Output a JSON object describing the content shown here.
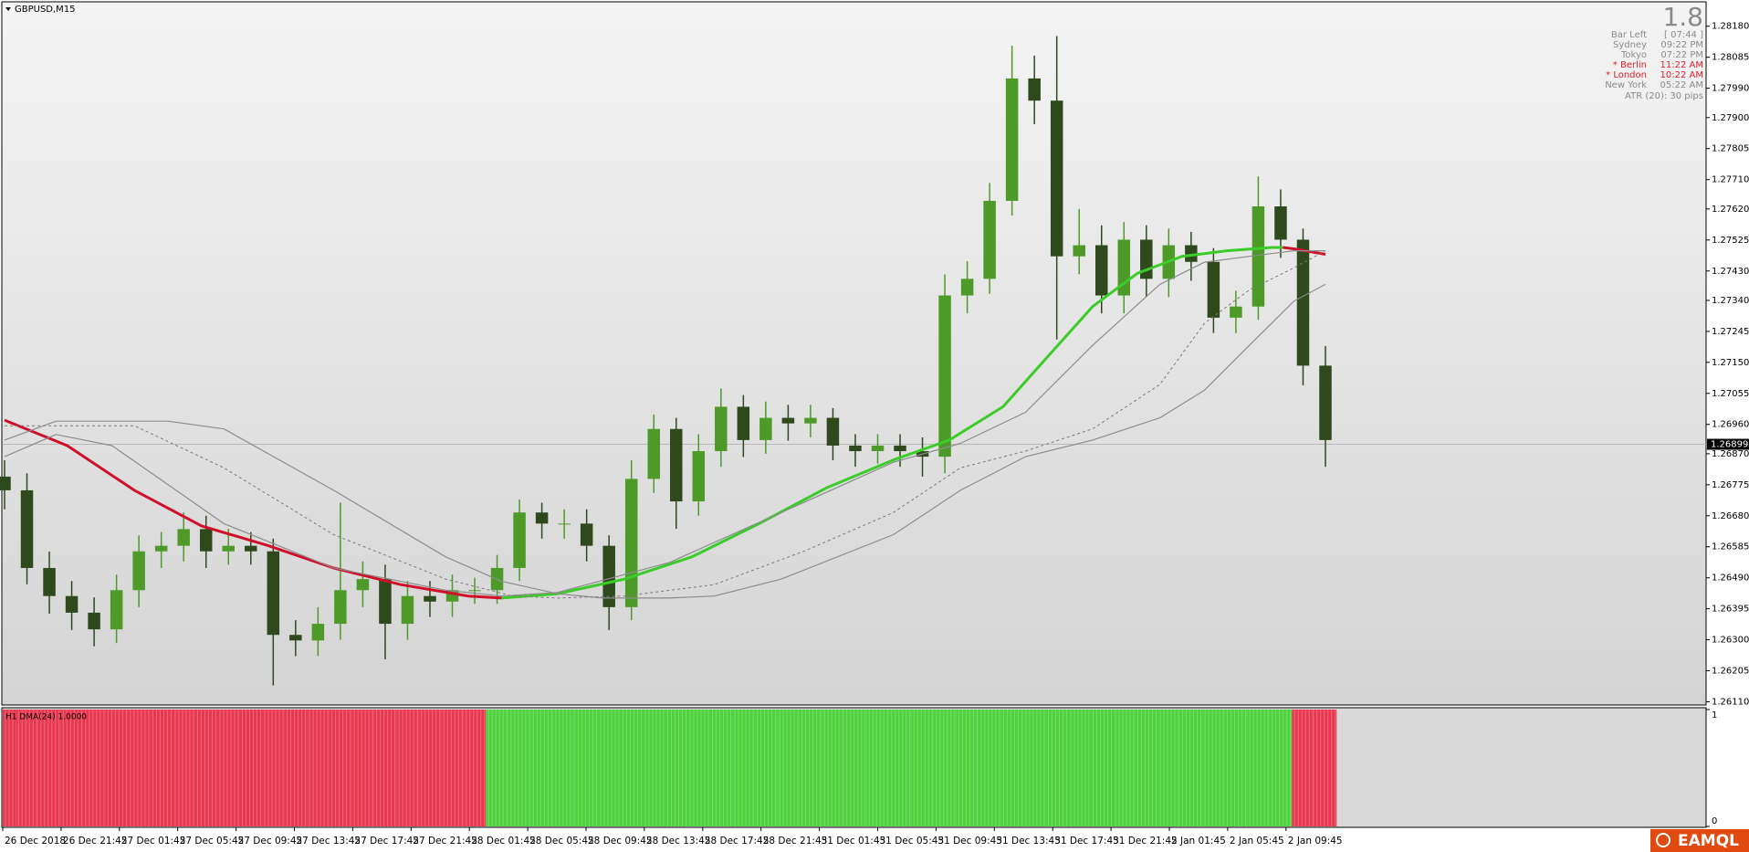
{
  "title": "GBPUSD,M15",
  "logo": "EAMQL",
  "info": {
    "big": "1.8",
    "rows": [
      {
        "name": "Bar Left",
        "value": "[ 07:44 ]",
        "color": "#8a8a8a"
      },
      {
        "name": "Sydney",
        "value": "09:22 PM",
        "color": "#8a8a8a"
      },
      {
        "name": "Tokyo",
        "value": "07:22 PM",
        "color": "#8a8a8a"
      },
      {
        "name": "* Berlin",
        "value": "11:22 AM",
        "color": "#e0202a"
      },
      {
        "name": "* London",
        "value": "10:22 AM",
        "color": "#e0202a"
      },
      {
        "name": "New York",
        "value": "05:22 AM",
        "color": "#8a8a8a"
      }
    ],
    "atr": "ATR (20): 30 pips"
  },
  "chart_data": {
    "type": "candlestick",
    "open": [
      1.268,
      1.26758,
      1.2652,
      1.26434,
      1.26383,
      1.26332,
      1.26452,
      1.26571,
      1.26588,
      1.26639,
      1.26571,
      1.26588,
      1.26571,
      1.26315,
      1.26298,
      1.26349,
      1.26452,
      1.26486,
      1.26349,
      1.26434,
      1.26417,
      1.26452,
      1.26452,
      1.2652,
      1.2669,
      1.26656,
      1.26656,
      1.26588,
      1.264,
      1.26793,
      1.26946,
      1.26724,
      1.26878,
      1.27014,
      1.26912,
      1.2698,
      1.26963,
      1.2698,
      1.26895,
      1.26878,
      1.26895,
      1.26878,
      1.26861,
      1.27355,
      1.27406,
      1.27645,
      1.2802,
      1.27952,
      1.27475,
      1.27509,
      1.27355,
      1.27526,
      1.27406,
      1.27509,
      1.27458,
      1.27287,
      1.27321,
      1.27628,
      1.27526,
      1.2714
    ],
    "high": [
      1.2685,
      1.2681,
      1.2657,
      1.2648,
      1.2643,
      1.265,
      1.2662,
      1.2663,
      1.2669,
      1.2668,
      1.2664,
      1.2663,
      1.2661,
      1.2636,
      1.264,
      1.2672,
      1.2654,
      1.2653,
      1.2648,
      1.2648,
      1.265,
      1.2649,
      1.2656,
      1.2673,
      1.2672,
      1.267,
      1.267,
      1.2662,
      1.2685,
      1.2699,
      1.2698,
      1.2693,
      1.2707,
      1.2705,
      1.2703,
      1.2702,
      1.2702,
      1.2701,
      1.2693,
      1.2693,
      1.2693,
      1.2692,
      1.2742,
      1.2746,
      1.277,
      1.2812,
      1.2809,
      1.2815,
      1.2762,
      1.2757,
      1.2758,
      1.2757,
      1.2756,
      1.2755,
      1.275,
      1.2737,
      1.2772,
      1.2768,
      1.2756,
      1.272
    ],
    "low": [
      1.267,
      1.2647,
      1.2638,
      1.2633,
      1.2628,
      1.2629,
      1.264,
      1.2652,
      1.2654,
      1.2652,
      1.2653,
      1.2653,
      1.2616,
      1.2625,
      1.2625,
      1.263,
      1.264,
      1.2624,
      1.263,
      1.2637,
      1.2637,
      1.2641,
      1.2641,
      1.2648,
      1.2661,
      1.2661,
      1.2654,
      1.2633,
      1.2636,
      1.2675,
      1.2664,
      1.2668,
      1.2683,
      1.2686,
      1.2687,
      1.2691,
      1.2692,
      1.2685,
      1.2683,
      1.2684,
      1.2683,
      1.268,
      1.2681,
      1.273,
      1.2736,
      1.276,
      1.2788,
      1.2722,
      1.2742,
      1.273,
      1.273,
      1.2735,
      1.2735,
      1.274,
      1.2724,
      1.2724,
      1.2728,
      1.2747,
      1.2708,
      1.2683
    ],
    "close": [
      1.26758,
      1.2652,
      1.26434,
      1.26383,
      1.26332,
      1.26452,
      1.26571,
      1.26588,
      1.26639,
      1.26571,
      1.26588,
      1.26571,
      1.26315,
      1.26298,
      1.26349,
      1.26452,
      1.26486,
      1.26349,
      1.26434,
      1.26417,
      1.26452,
      1.26452,
      1.2652,
      1.2669,
      1.26656,
      1.26656,
      1.26588,
      1.264,
      1.26793,
      1.26946,
      1.26724,
      1.26878,
      1.27014,
      1.26912,
      1.2698,
      1.26963,
      1.2698,
      1.26895,
      1.26878,
      1.26895,
      1.26878,
      1.26861,
      1.27355,
      1.27406,
      1.27645,
      1.2802,
      1.27952,
      1.27475,
      1.27509,
      1.27355,
      1.27526,
      1.27406,
      1.27509,
      1.27458,
      1.27287,
      1.27321,
      1.27628,
      1.27526,
      1.2714,
      1.26912
    ],
    "up_color": "#4d9a28",
    "down_color": "#2e4a1c",
    "ylim": [
      1.26103,
      1.28252
    ],
    "yticks": [
      {
        "value": 1.2818,
        "label": "1.28180"
      },
      1.28085,
      {
        "value": 1.2799,
        "label": "1.27990"
      },
      {
        "value": 1.279,
        "label": "1.27900"
      },
      1.27805,
      {
        "value": 1.2771,
        "label": "1.27710"
      },
      {
        "value": 1.2762,
        "label": "1.27620"
      },
      1.27525,
      {
        "value": 1.2743,
        "label": "1.27430"
      },
      {
        "value": 1.2734,
        "label": "1.27340"
      },
      1.27245,
      {
        "value": 1.2715,
        "label": "1.27150"
      },
      1.27055,
      {
        "value": 1.2696,
        "label": "1.26960"
      },
      {
        "value": 1.2687,
        "label": "1.26870"
      },
      1.26775,
      {
        "value": 1.2668,
        "label": "1.26680"
      },
      1.26585,
      {
        "value": 1.2649,
        "label": "1.26490"
      },
      1.26395,
      {
        "value": 1.263,
        "label": "1.26300"
      },
      1.26205,
      {
        "value": 1.2611,
        "label": "1.26110"
      }
    ],
    "current_price": 1.26899,
    "x_labels": [
      "26 Dec 2018",
      "26 Dec 21:45",
      "27 Dec 01:45",
      "27 Dec 05:45",
      "27 Dec 09:45",
      "27 Dec 13:45",
      "27 Dec 17:45",
      "27 Dec 21:45",
      "28 Dec 01:45",
      "28 Dec 05:45",
      "28 Dec 09:45",
      "28 Dec 13:45",
      "28 Dec 17:45",
      "28 Dec 21:45",
      "31 Dec 01:45",
      "31 Dec 05:45",
      "31 Dec 09:45",
      "31 Dec 13:45",
      "31 Dec 17:45",
      "31 Dec 21:45",
      "2 Jan 01:45",
      "2 Jan 05:45",
      "2 Jan 09:45"
    ],
    "lines": [
      {
        "color": "#d0102a",
        "width": 3,
        "dashed": false,
        "x": [
          0,
          2.8,
          5.8,
          8.8,
          11.8,
          14.7,
          17.7,
          20.7,
          22.2
        ],
        "values": [
          1.26973,
          1.26895,
          1.26758,
          1.26649,
          1.26588,
          1.2652,
          1.26469,
          1.26434,
          1.26428
        ]
      },
      {
        "color": "#3ccc2a",
        "width": 3,
        "dashed": false,
        "x": [
          22.2,
          24.7,
          27.7,
          30.7,
          33.7,
          36.7,
          39.7,
          42.2,
          44.6,
          46.6,
          48.6,
          50.6,
          52.6,
          54.6,
          56.6,
          57.1
        ],
        "values": [
          1.26428,
          1.26441,
          1.26486,
          1.26554,
          1.26656,
          1.26765,
          1.26851,
          1.26912,
          1.27014,
          1.27168,
          1.27321,
          1.27423,
          1.27475,
          1.27492,
          1.27502,
          1.27502
        ]
      },
      {
        "color": "#d0102a",
        "width": 3,
        "dashed": false,
        "x": [
          57.1,
          57.6,
          59.0
        ],
        "values": [
          1.27502,
          1.27498,
          1.27481
        ]
      },
      {
        "color": "#8c8c8c",
        "width": 1.2,
        "dashed": false,
        "x": [
          0,
          2.3,
          7.3,
          9.8,
          14.7,
          19.7,
          22.2,
          24.7,
          26.7,
          29.7,
          31.7,
          34.7,
          39.7,
          42.7,
          45.6,
          48.6,
          51.6,
          53.6,
          55.6,
          57.6,
          59.0
        ],
        "values": [
          1.26912,
          1.2697,
          1.2697,
          1.26946,
          1.26758,
          1.26554,
          1.26479,
          1.26441,
          1.26428,
          1.26428,
          1.26434,
          1.26486,
          1.26622,
          1.26758,
          1.26861,
          1.26912,
          1.2698,
          1.27065,
          1.27202,
          1.27338,
          1.27389
        ]
      },
      {
        "color": "#8c8c8c",
        "width": 1.2,
        "dashed": false,
        "x": [
          0,
          2.3,
          4.8,
          9.8,
          14.7,
          19.7,
          22.2,
          24.7,
          29.7,
          34.7,
          39.7,
          42.7,
          45.6,
          48.6,
          51.6,
          53.6,
          55.6,
          57.6,
          59.0
        ],
        "values": [
          1.26861,
          1.26929,
          1.26895,
          1.26656,
          1.2652,
          1.26452,
          1.26434,
          1.26445,
          1.26537,
          1.2669,
          1.26844,
          1.26902,
          1.26997,
          1.27202,
          1.27389,
          1.27457,
          1.27475,
          1.27492,
          1.27492
        ]
      },
      {
        "color": "#7a7a7a",
        "width": 1,
        "dashed": true,
        "x": [
          0,
          5.8,
          9.8,
          14.7,
          19.7,
          22.7,
          24.7,
          27.7,
          31.7,
          35.7,
          39.7,
          42.7,
          45.6,
          48.6,
          51.6,
          53.6,
          55.6,
          57.6,
          59.0
        ],
        "values": [
          1.26956,
          1.26956,
          1.26827,
          1.26622,
          1.26486,
          1.26434,
          1.26428,
          1.26434,
          1.26469,
          1.26571,
          1.2669,
          1.26827,
          1.26878,
          1.26946,
          1.27082,
          1.2727,
          1.27372,
          1.2744,
          1.27492
        ]
      }
    ],
    "indicator": {
      "label": "H1 DMA(24) 1.0000",
      "ylim": [
        0,
        1
      ],
      "yticks": [
        1,
        0
      ],
      "values": [
        1,
        1,
        1,
        1,
        1,
        1,
        1,
        1,
        1,
        1,
        1,
        1,
        1,
        1,
        1,
        1,
        1,
        1,
        1,
        1,
        1,
        1,
        1,
        1,
        1,
        1,
        1,
        1,
        1,
        1,
        1,
        1,
        1,
        1,
        1,
        1,
        1,
        1,
        1,
        1,
        1,
        1,
        1,
        1,
        1,
        1,
        1,
        1,
        1,
        1,
        1,
        1,
        1,
        1,
        1,
        1,
        1,
        1,
        1,
        1
      ],
      "colors": [
        "#e8384f",
        "#e8384f",
        "#e8384f",
        "#e8384f",
        "#e8384f",
        "#e8384f",
        "#e8384f",
        "#e8384f",
        "#e8384f",
        "#e8384f",
        "#e8384f",
        "#e8384f",
        "#e8384f",
        "#e8384f",
        "#e8384f",
        "#e8384f",
        "#e8384f",
        "#e8384f",
        "#e8384f",
        "#e8384f",
        "#e8384f",
        "#e8384f",
        "#4fd23e",
        "#4fd23e",
        "#4fd23e",
        "#4fd23e",
        "#4fd23e",
        "#4fd23e",
        "#4fd23e",
        "#4fd23e",
        "#4fd23e",
        "#4fd23e",
        "#4fd23e",
        "#4fd23e",
        "#4fd23e",
        "#4fd23e",
        "#4fd23e",
        "#4fd23e",
        "#4fd23e",
        "#4fd23e",
        "#4fd23e",
        "#4fd23e",
        "#4fd23e",
        "#4fd23e",
        "#4fd23e",
        "#4fd23e",
        "#4fd23e",
        "#4fd23e",
        "#4fd23e",
        "#4fd23e",
        "#4fd23e",
        "#4fd23e",
        "#4fd23e",
        "#4fd23e",
        "#4fd23e",
        "#4fd23e",
        "#4fd23e",
        "#4fd23e",
        "#e8384f",
        "#e8384f"
      ]
    }
  }
}
